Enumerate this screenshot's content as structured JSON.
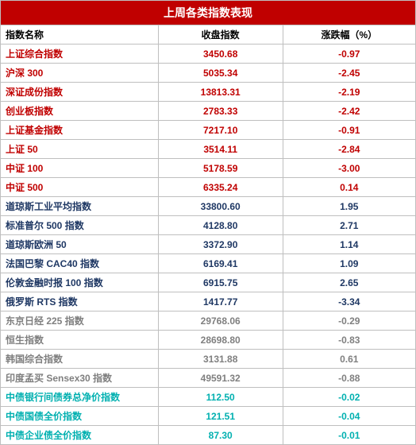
{
  "title": "上周各类指数表现",
  "columns": [
    "指数名称",
    "收盘指数",
    "涨跌幅（%）"
  ],
  "col_align": [
    "left",
    "center",
    "center"
  ],
  "groups": {
    "cn": {
      "color": "#c00000"
    },
    "us": {
      "color": "#1f3864"
    },
    "asia": {
      "color": "#7f7f7f"
    },
    "bond": {
      "color": "#00b0b0"
    }
  },
  "rows": [
    {
      "group": "cn",
      "name": "上证综合指数",
      "close": "3450.68",
      "chg": "-0.97"
    },
    {
      "group": "cn",
      "name": "沪深 300",
      "close": "5035.34",
      "chg": "-2.45"
    },
    {
      "group": "cn",
      "name": "深证成份指数",
      "close": "13813.31",
      "chg": "-2.19"
    },
    {
      "group": "cn",
      "name": "创业板指数",
      "close": "2783.33",
      "chg": "-2.42"
    },
    {
      "group": "cn",
      "name": "上证基金指数",
      "close": "7217.10",
      "chg": "-0.91"
    },
    {
      "group": "cn",
      "name": "上证 50",
      "close": "3514.11",
      "chg": "-2.84"
    },
    {
      "group": "cn",
      "name": "中证 100",
      "close": "5178.59",
      "chg": "-3.00"
    },
    {
      "group": "cn",
      "name": "中证 500",
      "close": "6335.24",
      "chg": "0.14"
    },
    {
      "group": "us",
      "name": "道琼斯工业平均指数",
      "close": "33800.60",
      "chg": "1.95"
    },
    {
      "group": "us",
      "name": "标准普尔 500 指数",
      "close": "4128.80",
      "chg": "2.71"
    },
    {
      "group": "us",
      "name": "道琼斯欧洲 50",
      "close": "3372.90",
      "chg": "1.14"
    },
    {
      "group": "us",
      "name": "法国巴黎 CAC40 指数",
      "close": "6169.41",
      "chg": "1.09"
    },
    {
      "group": "us",
      "name": "伦敦金融时报 100 指数",
      "close": "6915.75",
      "chg": "2.65"
    },
    {
      "group": "us",
      "name": "俄罗斯 RTS 指数",
      "close": "1417.77",
      "chg": "-3.34"
    },
    {
      "group": "asia",
      "name": "东京日经 225 指数",
      "close": "29768.06",
      "chg": "-0.29"
    },
    {
      "group": "asia",
      "name": "恒生指数",
      "close": "28698.80",
      "chg": "-0.83"
    },
    {
      "group": "asia",
      "name": "韩国综合指数",
      "close": "3131.88",
      "chg": "0.61"
    },
    {
      "group": "asia",
      "name": "印度孟买 Sensex30 指数",
      "close": "49591.32",
      "chg": "-0.88"
    },
    {
      "group": "bond",
      "name": "中债银行间债券总净价指数",
      "close": "112.50",
      "chg": "-0.02"
    },
    {
      "group": "bond",
      "name": "中债国债全价指数",
      "close": "121.51",
      "chg": "-0.04"
    },
    {
      "group": "bond",
      "name": "中债企业债全价指数",
      "close": "87.30",
      "chg": "-0.01"
    }
  ]
}
